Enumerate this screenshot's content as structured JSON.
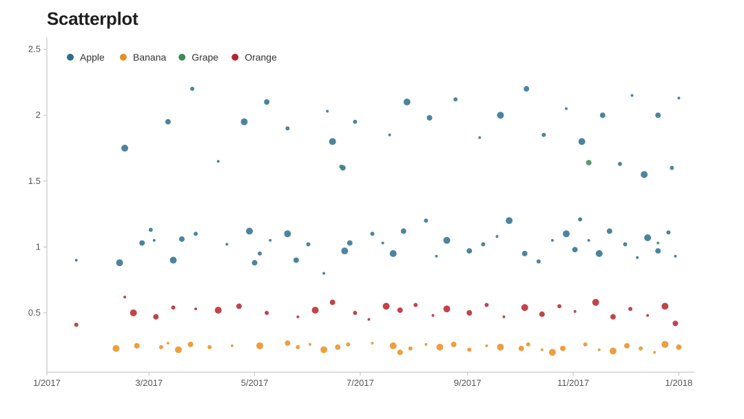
{
  "chart_data": {
    "type": "scatter",
    "title": "Scatterplot",
    "xlabel": "",
    "ylabel": "",
    "xlim": [
      "2017-01-01",
      "2018-01-10"
    ],
    "ylim": [
      0.05,
      2.55
    ],
    "grid": false,
    "legend_position": "top-left",
    "x_ticks": [
      "1/2017",
      "3/2017",
      "5/2017",
      "7/2017",
      "9/2017",
      "11/2017",
      "1/2018"
    ],
    "y_ticks": [
      "0.5",
      "1",
      "1.5",
      "2",
      "2.5"
    ],
    "series": [
      {
        "name": "Apple",
        "color": "#2e6e8c",
        "points": [
          [
            "2017-01-18",
            0.9
          ],
          [
            "2017-02-12",
            0.88
          ],
          [
            "2017-02-25",
            1.03
          ],
          [
            "2017-03-02",
            1.13
          ],
          [
            "2017-03-04",
            1.05
          ],
          [
            "2017-03-15",
            0.9
          ],
          [
            "2017-03-20",
            1.06
          ],
          [
            "2017-03-28",
            1.1
          ],
          [
            "2017-04-15",
            1.02
          ],
          [
            "2017-04-28",
            1.12
          ],
          [
            "2017-05-01",
            0.88
          ],
          [
            "2017-05-04",
            0.95
          ],
          [
            "2017-05-10",
            1.05
          ],
          [
            "2017-05-20",
            1.1
          ],
          [
            "2017-05-25",
            0.9
          ],
          [
            "2017-06-01",
            1.02
          ],
          [
            "2017-06-10",
            0.8
          ],
          [
            "2017-06-22",
            0.97
          ],
          [
            "2017-06-25",
            1.03
          ],
          [
            "2017-07-08",
            1.1
          ],
          [
            "2017-07-14",
            1.03
          ],
          [
            "2017-07-20",
            0.95
          ],
          [
            "2017-07-26",
            1.12
          ],
          [
            "2017-08-08",
            1.2
          ],
          [
            "2017-08-14",
            0.93
          ],
          [
            "2017-08-20",
            1.05
          ],
          [
            "2017-09-02",
            0.97
          ],
          [
            "2017-09-10",
            1.02
          ],
          [
            "2017-09-18",
            1.08
          ],
          [
            "2017-09-25",
            1.2
          ],
          [
            "2017-10-04",
            0.95
          ],
          [
            "2017-10-12",
            0.89
          ],
          [
            "2017-10-20",
            1.05
          ],
          [
            "2017-10-28",
            1.1
          ],
          [
            "2017-11-02",
            0.98
          ],
          [
            "2017-11-05",
            1.21
          ],
          [
            "2017-11-10",
            1.05
          ],
          [
            "2017-11-16",
            0.95
          ],
          [
            "2017-11-22",
            1.12
          ],
          [
            "2017-12-01",
            1.02
          ],
          [
            "2017-12-08",
            0.92
          ],
          [
            "2017-12-14",
            1.07
          ],
          [
            "2017-12-20",
            0.97
          ],
          [
            "2017-12-26",
            1.11
          ],
          [
            "2017-12-30",
            0.93
          ],
          [
            "2017-02-15",
            1.75
          ],
          [
            "2017-03-12",
            1.95
          ],
          [
            "2017-03-26",
            2.2
          ],
          [
            "2017-04-10",
            1.65
          ],
          [
            "2017-04-25",
            1.95
          ],
          [
            "2017-05-08",
            2.1
          ],
          [
            "2017-05-20",
            1.9
          ],
          [
            "2017-06-12",
            2.03
          ],
          [
            "2017-06-15",
            1.8
          ],
          [
            "2017-06-21",
            1.6
          ],
          [
            "2017-06-28",
            1.95
          ],
          [
            "2017-07-18",
            1.85
          ],
          [
            "2017-07-28",
            2.1
          ],
          [
            "2017-08-10",
            1.98
          ],
          [
            "2017-08-25",
            2.12
          ],
          [
            "2017-09-08",
            1.83
          ],
          [
            "2017-09-20",
            2.0
          ],
          [
            "2017-10-05",
            2.2
          ],
          [
            "2017-10-15",
            1.85
          ],
          [
            "2017-10-28",
            2.05
          ],
          [
            "2017-11-06",
            1.8
          ],
          [
            "2017-11-18",
            2.0
          ],
          [
            "2017-11-28",
            1.63
          ],
          [
            "2017-12-05",
            2.15
          ],
          [
            "2017-12-12",
            1.55
          ],
          [
            "2017-12-20",
            2.0
          ],
          [
            "2017-12-28",
            1.6
          ],
          [
            "2018-01-01",
            2.13
          ]
        ]
      },
      {
        "name": "Banana",
        "color": "#e98e1f",
        "points": [
          [
            "2017-02-10",
            0.23
          ],
          [
            "2017-02-22",
            0.25
          ],
          [
            "2017-03-08",
            0.24
          ],
          [
            "2017-03-12",
            0.27
          ],
          [
            "2017-03-18",
            0.22
          ],
          [
            "2017-03-25",
            0.26
          ],
          [
            "2017-04-05",
            0.24
          ],
          [
            "2017-04-18",
            0.25
          ],
          [
            "2017-05-04",
            0.25
          ],
          [
            "2017-05-20",
            0.27
          ],
          [
            "2017-05-26",
            0.24
          ],
          [
            "2017-06-02",
            0.26
          ],
          [
            "2017-06-10",
            0.22
          ],
          [
            "2017-06-18",
            0.24
          ],
          [
            "2017-06-24",
            0.26
          ],
          [
            "2017-07-08",
            0.27
          ],
          [
            "2017-07-20",
            0.25
          ],
          [
            "2017-07-24",
            0.2
          ],
          [
            "2017-07-30",
            0.23
          ],
          [
            "2017-08-08",
            0.26
          ],
          [
            "2017-08-16",
            0.24
          ],
          [
            "2017-08-24",
            0.26
          ],
          [
            "2017-09-02",
            0.22
          ],
          [
            "2017-09-12",
            0.25
          ],
          [
            "2017-09-20",
            0.24
          ],
          [
            "2017-10-02",
            0.23
          ],
          [
            "2017-10-06",
            0.26
          ],
          [
            "2017-10-14",
            0.22
          ],
          [
            "2017-10-20",
            0.2
          ],
          [
            "2017-10-26",
            0.23
          ],
          [
            "2017-11-08",
            0.26
          ],
          [
            "2017-11-16",
            0.22
          ],
          [
            "2017-11-24",
            0.21
          ],
          [
            "2017-12-02",
            0.25
          ],
          [
            "2017-12-10",
            0.23
          ],
          [
            "2017-12-18",
            0.2
          ],
          [
            "2017-12-24",
            0.26
          ],
          [
            "2018-01-01",
            0.24
          ]
        ]
      },
      {
        "name": "Grape",
        "color": "#3d8b55",
        "points": [
          [
            "2017-11-10",
            1.64
          ],
          [
            "2017-06-20",
            1.61
          ],
          [
            "2017-12-20",
            1.03
          ]
        ]
      },
      {
        "name": "Orange",
        "color": "#b5252c",
        "points": [
          [
            "2017-01-18",
            0.41
          ],
          [
            "2017-02-15",
            0.62
          ],
          [
            "2017-02-20",
            0.5
          ],
          [
            "2017-03-05",
            0.47
          ],
          [
            "2017-03-15",
            0.54
          ],
          [
            "2017-03-28",
            0.53
          ],
          [
            "2017-04-10",
            0.52
          ],
          [
            "2017-04-22",
            0.55
          ],
          [
            "2017-05-08",
            0.5
          ],
          [
            "2017-05-26",
            0.47
          ],
          [
            "2017-06-05",
            0.52
          ],
          [
            "2017-06-15",
            0.58
          ],
          [
            "2017-06-28",
            0.5
          ],
          [
            "2017-07-06",
            0.45
          ],
          [
            "2017-07-16",
            0.55
          ],
          [
            "2017-07-24",
            0.52
          ],
          [
            "2017-08-02",
            0.56
          ],
          [
            "2017-08-12",
            0.48
          ],
          [
            "2017-08-20",
            0.53
          ],
          [
            "2017-09-02",
            0.5
          ],
          [
            "2017-09-12",
            0.56
          ],
          [
            "2017-09-22",
            0.47
          ],
          [
            "2017-10-04",
            0.54
          ],
          [
            "2017-10-14",
            0.49
          ],
          [
            "2017-10-24",
            0.55
          ],
          [
            "2017-11-02",
            0.51
          ],
          [
            "2017-11-14",
            0.58
          ],
          [
            "2017-11-24",
            0.47
          ],
          [
            "2017-12-04",
            0.53
          ],
          [
            "2017-12-14",
            0.48
          ],
          [
            "2017-12-24",
            0.55
          ],
          [
            "2017-12-30",
            0.42
          ]
        ]
      }
    ]
  }
}
